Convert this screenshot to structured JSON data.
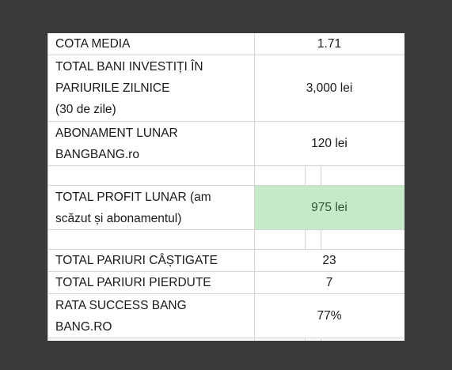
{
  "rows": {
    "cota_media": {
      "label": "COTA MEDIA",
      "value": "1.71"
    },
    "total_bani": {
      "label_line1": "TOTAL BANI INVESTIȚI ÎN",
      "label_line2": "PARIURILE ZILNICE",
      "label_line3": "(30 de zile)",
      "value": "3,000 lei"
    },
    "abonament": {
      "label_line1": "ABONAMENT LUNAR",
      "label_line2": "BANGBANG.ro",
      "value": "120 lei"
    },
    "profit": {
      "label_line1": "TOTAL PROFIT LUNAR (am",
      "label_line2": "scăzut și abonamentul)",
      "value": "975 lei"
    },
    "castigate": {
      "label": "TOTAL PARIURI CÂȘTIGATE",
      "value": "23"
    },
    "pierdute": {
      "label": "TOTAL PARIURI PIERDUTE",
      "value": "7"
    },
    "rata": {
      "label_line1": "RATA SUCCESS BANG",
      "label_line2": "BANG.RO",
      "value": "77%"
    }
  },
  "colors": {
    "background": "#3a3a3a",
    "cell_highlight": "#c6e9c8",
    "grid": "#d4d4d4"
  }
}
